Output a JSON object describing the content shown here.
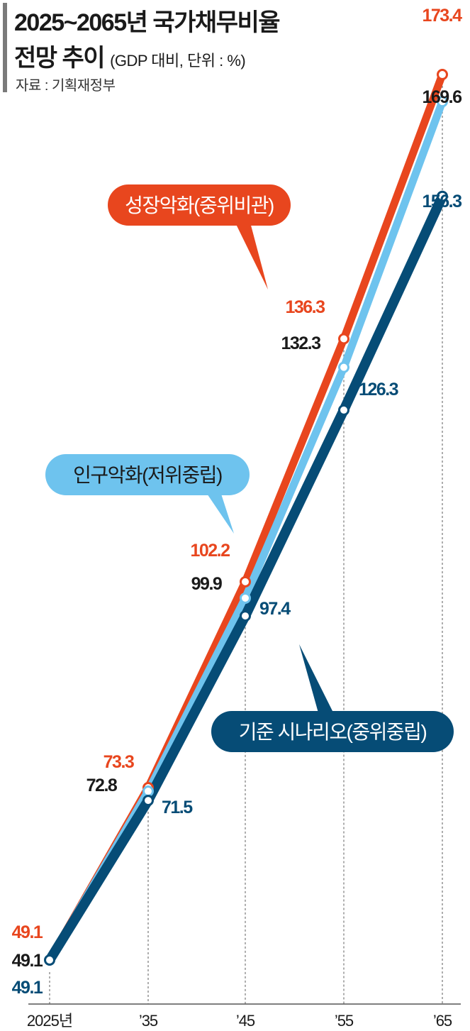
{
  "title": {
    "line1": "2025~2065년 국가채무비율",
    "line2": "전망 추이",
    "subtitle": "(GDP 대비, 단위 : %)",
    "source": "자료 : 기획재정부"
  },
  "chart_data": {
    "type": "line",
    "categories": [
      "2025년",
      "’35",
      "’45",
      "’55",
      "’65"
    ],
    "series": [
      {
        "name": "성장악화(중위비관)",
        "color": "#e8461e",
        "values": [
          49.1,
          73.3,
          102.2,
          136.3,
          173.4
        ]
      },
      {
        "name": "인구악화(저위중립)",
        "color": "#6ec3ee",
        "values": [
          49.1,
          72.8,
          99.9,
          132.3,
          169.6
        ]
      },
      {
        "name": "기준 시나리오(중위중립)",
        "color": "#064c76",
        "values": [
          49.1,
          71.5,
          97.4,
          126.3,
          156.3
        ]
      }
    ],
    "value_label_colors": [
      "#e8461e",
      "#1a1a1a",
      "#064c76"
    ],
    "grid": "vertical dashed",
    "legend": "callout labels",
    "xlabel": "",
    "ylabel": ""
  }
}
